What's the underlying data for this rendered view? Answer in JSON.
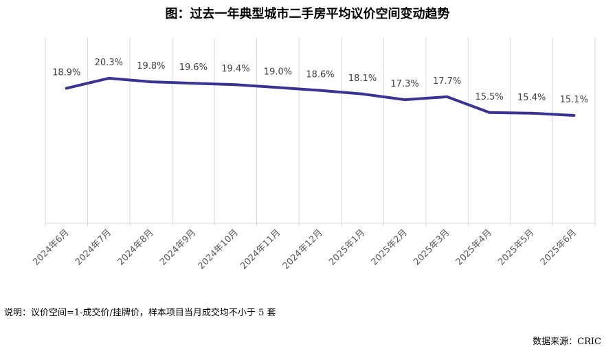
{
  "title": "图：过去一年典型城市二手房平均议价空间变动趋势",
  "note": "说明：议价空间=1-成交价/挂牌价，样本项目当月成交均不小于 5 套",
  "source": "数据来源：CRIC",
  "chart_data": {
    "type": "line",
    "title": "图：过去一年典型城市二手房平均议价空间变动趋势",
    "xlabel": "",
    "ylabel": "",
    "categories": [
      "2024年6月",
      "2024年7月",
      "2024年8月",
      "2024年9月",
      "2024年10月",
      "2024年11月",
      "2024年12月",
      "2025年1月",
      "2025年2月",
      "2025年3月",
      "2025年4月",
      "2025年5月",
      "2025年6月"
    ],
    "values": [
      18.9,
      20.3,
      19.8,
      19.6,
      19.4,
      19.0,
      18.6,
      18.1,
      17.3,
      17.7,
      15.5,
      15.4,
      15.1
    ],
    "value_labels": [
      "18.9%",
      "20.3%",
      "19.8%",
      "19.6%",
      "19.4%",
      "19.0%",
      "18.6%",
      "18.1%",
      "17.3%",
      "17.7%",
      "15.5%",
      "15.4%",
      "15.1%"
    ],
    "ylim": [
      0,
      24
    ],
    "grid": true,
    "line_color": "#3a3391",
    "grid_color": "#d9d9d9"
  }
}
